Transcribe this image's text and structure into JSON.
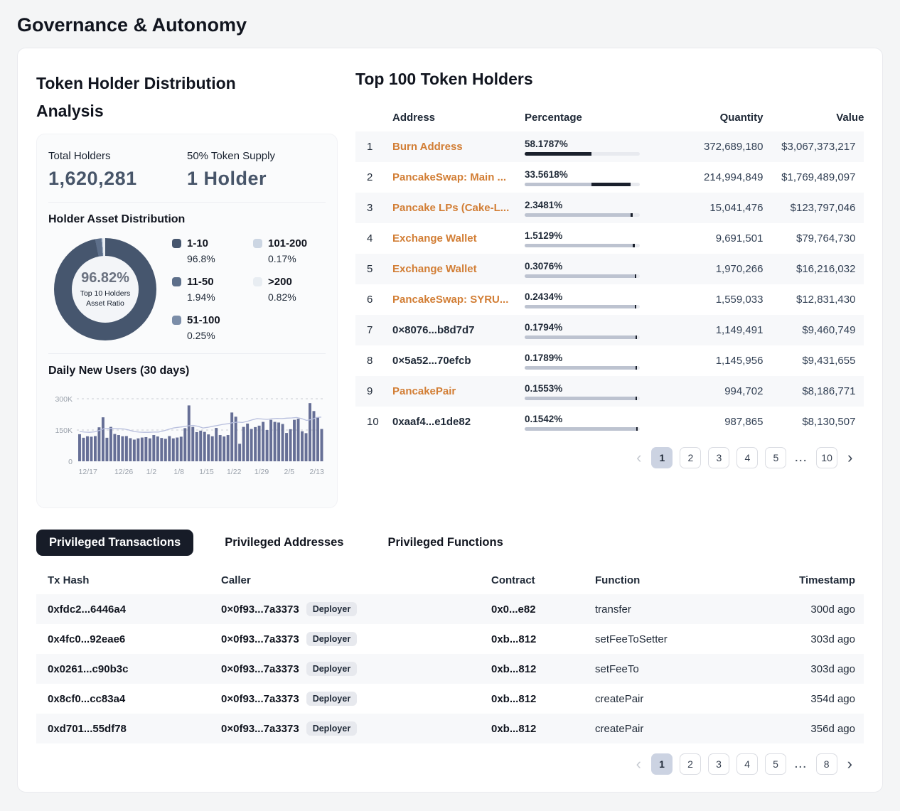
{
  "page": {
    "title": "Governance & Autonomy"
  },
  "left_panel": {
    "title": "Token Holder Distribution Analysis",
    "stats": [
      {
        "label": "Total Holders",
        "value": "1,620,281"
      },
      {
        "label": "50% Token Supply",
        "value": "1 Holder"
      }
    ]
  },
  "chart_data": [
    {
      "type": "pie",
      "title": "Holder Asset Distribution",
      "center_value": "96.82%",
      "center_label": "Top 10 Holders Asset Ratio",
      "labels": [
        "1-10",
        "11-50",
        "51-100",
        "101-200",
        ">200"
      ],
      "values": [
        96.8,
        1.94,
        0.25,
        0.17,
        0.82
      ],
      "value_labels": [
        "96.8%",
        "1.94%",
        "0.25%",
        "0.17%",
        "0.82%"
      ],
      "colors": [
        "#46566e",
        "#5d6f8a",
        "#7b8da8",
        "#ccd6e3",
        "#e8edf2"
      ],
      "legend_position": "right"
    },
    {
      "type": "bar",
      "title": "Daily New Users (30 days)",
      "ylabel": "",
      "xlabel": "",
      "y_ticks": [
        "300K",
        "150K",
        "0"
      ],
      "ylim_k": [
        0,
        300
      ],
      "x_ticks": [
        "12/17",
        "12/26",
        "1/2",
        "1/8",
        "1/15",
        "1/22",
        "1/29",
        "2/5",
        "2/13"
      ],
      "bar_color": "#666f96",
      "line_color": "#b7bedd",
      "grid": "dashed horizontal at 150K and 300K",
      "values_k": [
        130,
        113,
        120,
        118,
        121,
        163,
        211,
        113,
        165,
        131,
        126,
        120,
        121,
        111,
        104,
        110,
        114,
        116,
        110,
        126,
        119,
        112,
        108,
        121,
        110,
        114,
        118,
        159,
        268,
        165,
        140,
        147,
        141,
        129,
        120,
        160,
        126,
        119,
        126,
        234,
        214,
        84,
        165,
        181,
        155,
        164,
        171,
        189,
        150,
        199,
        189,
        186,
        179,
        136,
        154,
        199,
        204,
        144,
        135,
        279,
        241,
        210,
        155
      ],
      "line_k": [
        143,
        140,
        139,
        141,
        148,
        157,
        158,
        157,
        156,
        155,
        150,
        143,
        140,
        139,
        139,
        140,
        140,
        146,
        153,
        160,
        163,
        166,
        170,
        172,
        168,
        160,
        163,
        168,
        172,
        177,
        180,
        185,
        188,
        186,
        192,
        199,
        205,
        203,
        201,
        204,
        206,
        205,
        207,
        208,
        210,
        205,
        196,
        200,
        210,
        212
      ]
    }
  ],
  "holders": {
    "title": "Top 100 Token Holders",
    "columns": [
      "Address",
      "Percentage",
      "Quantity",
      "Value"
    ],
    "rows": [
      {
        "rank": "1",
        "address": "Burn Address",
        "link": true,
        "pct_label": "58.1787%",
        "pct": 58.1787,
        "quantity": "372,689,180",
        "value": "$3,067,373,217"
      },
      {
        "rank": "2",
        "address": "PancakeSwap: Main ...",
        "link": true,
        "pct_label": "33.5618%",
        "pct": 33.5618,
        "quantity": "214,994,849",
        "value": "$1,769,489,097"
      },
      {
        "rank": "3",
        "address": "Pancake LPs (Cake-L...",
        "link": true,
        "pct_label": "2.3481%",
        "pct": 2.3481,
        "quantity": "15,041,476",
        "value": "$123,797,046"
      },
      {
        "rank": "4",
        "address": "Exchange Wallet",
        "link": true,
        "pct_label": "1.5129%",
        "pct": 1.5129,
        "quantity": "9,691,501",
        "value": "$79,764,730"
      },
      {
        "rank": "5",
        "address": "Exchange Wallet",
        "link": true,
        "pct_label": "0.3076%",
        "pct": 0.3076,
        "quantity": "1,970,266",
        "value": "$16,216,032"
      },
      {
        "rank": "6",
        "address": "PancakeSwap: SYRU...",
        "link": true,
        "pct_label": "0.2434%",
        "pct": 0.2434,
        "quantity": "1,559,033",
        "value": "$12,831,430"
      },
      {
        "rank": "7",
        "address": "0×8076...b8d7d7",
        "link": false,
        "pct_label": "0.1794%",
        "pct": 0.1794,
        "quantity": "1,149,491",
        "value": "$9,460,749"
      },
      {
        "rank": "8",
        "address": "0×5a52...70efcb",
        "link": false,
        "pct_label": "0.1789%",
        "pct": 0.1789,
        "quantity": "1,145,956",
        "value": "$9,431,655"
      },
      {
        "rank": "9",
        "address": "PancakePair",
        "link": true,
        "pct_label": "0.1553%",
        "pct": 0.1553,
        "quantity": "994,702",
        "value": "$8,186,771"
      },
      {
        "rank": "10",
        "address": "0xaaf4...e1de82",
        "link": false,
        "pct_label": "0.1542%",
        "pct": 0.1542,
        "quantity": "987,865",
        "value": "$8,130,507"
      }
    ],
    "pagination": {
      "prev": "‹",
      "next": "›",
      "pages": [
        "1",
        "2",
        "3",
        "4",
        "5",
        "...",
        "10"
      ],
      "active": "1"
    }
  },
  "tabs": [
    {
      "label": "Privileged Transactions",
      "active": true
    },
    {
      "label": "Privileged Addresses",
      "active": false
    },
    {
      "label": "Privileged Functions",
      "active": false
    }
  ],
  "transactions": {
    "columns": [
      "Tx Hash",
      "Caller",
      "Contract",
      "Function",
      "Timestamp"
    ],
    "rows": [
      {
        "tx": "0xfdc2...6446a4",
        "caller": "0×0f93...7a3373",
        "badge": "Deployer",
        "contract": "0x0...e82",
        "fn": "transfer",
        "time": "300d ago"
      },
      {
        "tx": "0x4fc0...92eae6",
        "caller": "0×0f93...7a3373",
        "badge": "Deployer",
        "contract": "0xb...812",
        "fn": "setFeeToSetter",
        "time": "303d ago"
      },
      {
        "tx": "0x0261...c90b3c",
        "caller": "0×0f93...7a3373",
        "badge": "Deployer",
        "contract": "0xb...812",
        "fn": "setFeeTo",
        "time": "303d ago"
      },
      {
        "tx": "0x8cf0...cc83a4",
        "caller": "0×0f93...7a3373",
        "badge": "Deployer",
        "contract": "0xb...812",
        "fn": "createPair",
        "time": "354d ago"
      },
      {
        "tx": "0xd701...55df78",
        "caller": "0×0f93...7a3373",
        "badge": "Deployer",
        "contract": "0xb...812",
        "fn": "createPair",
        "time": "356d ago"
      }
    ],
    "pagination": {
      "prev": "‹",
      "next": "›",
      "pages": [
        "1",
        "2",
        "3",
        "4",
        "5",
        "...",
        "8"
      ],
      "active": "1"
    }
  }
}
